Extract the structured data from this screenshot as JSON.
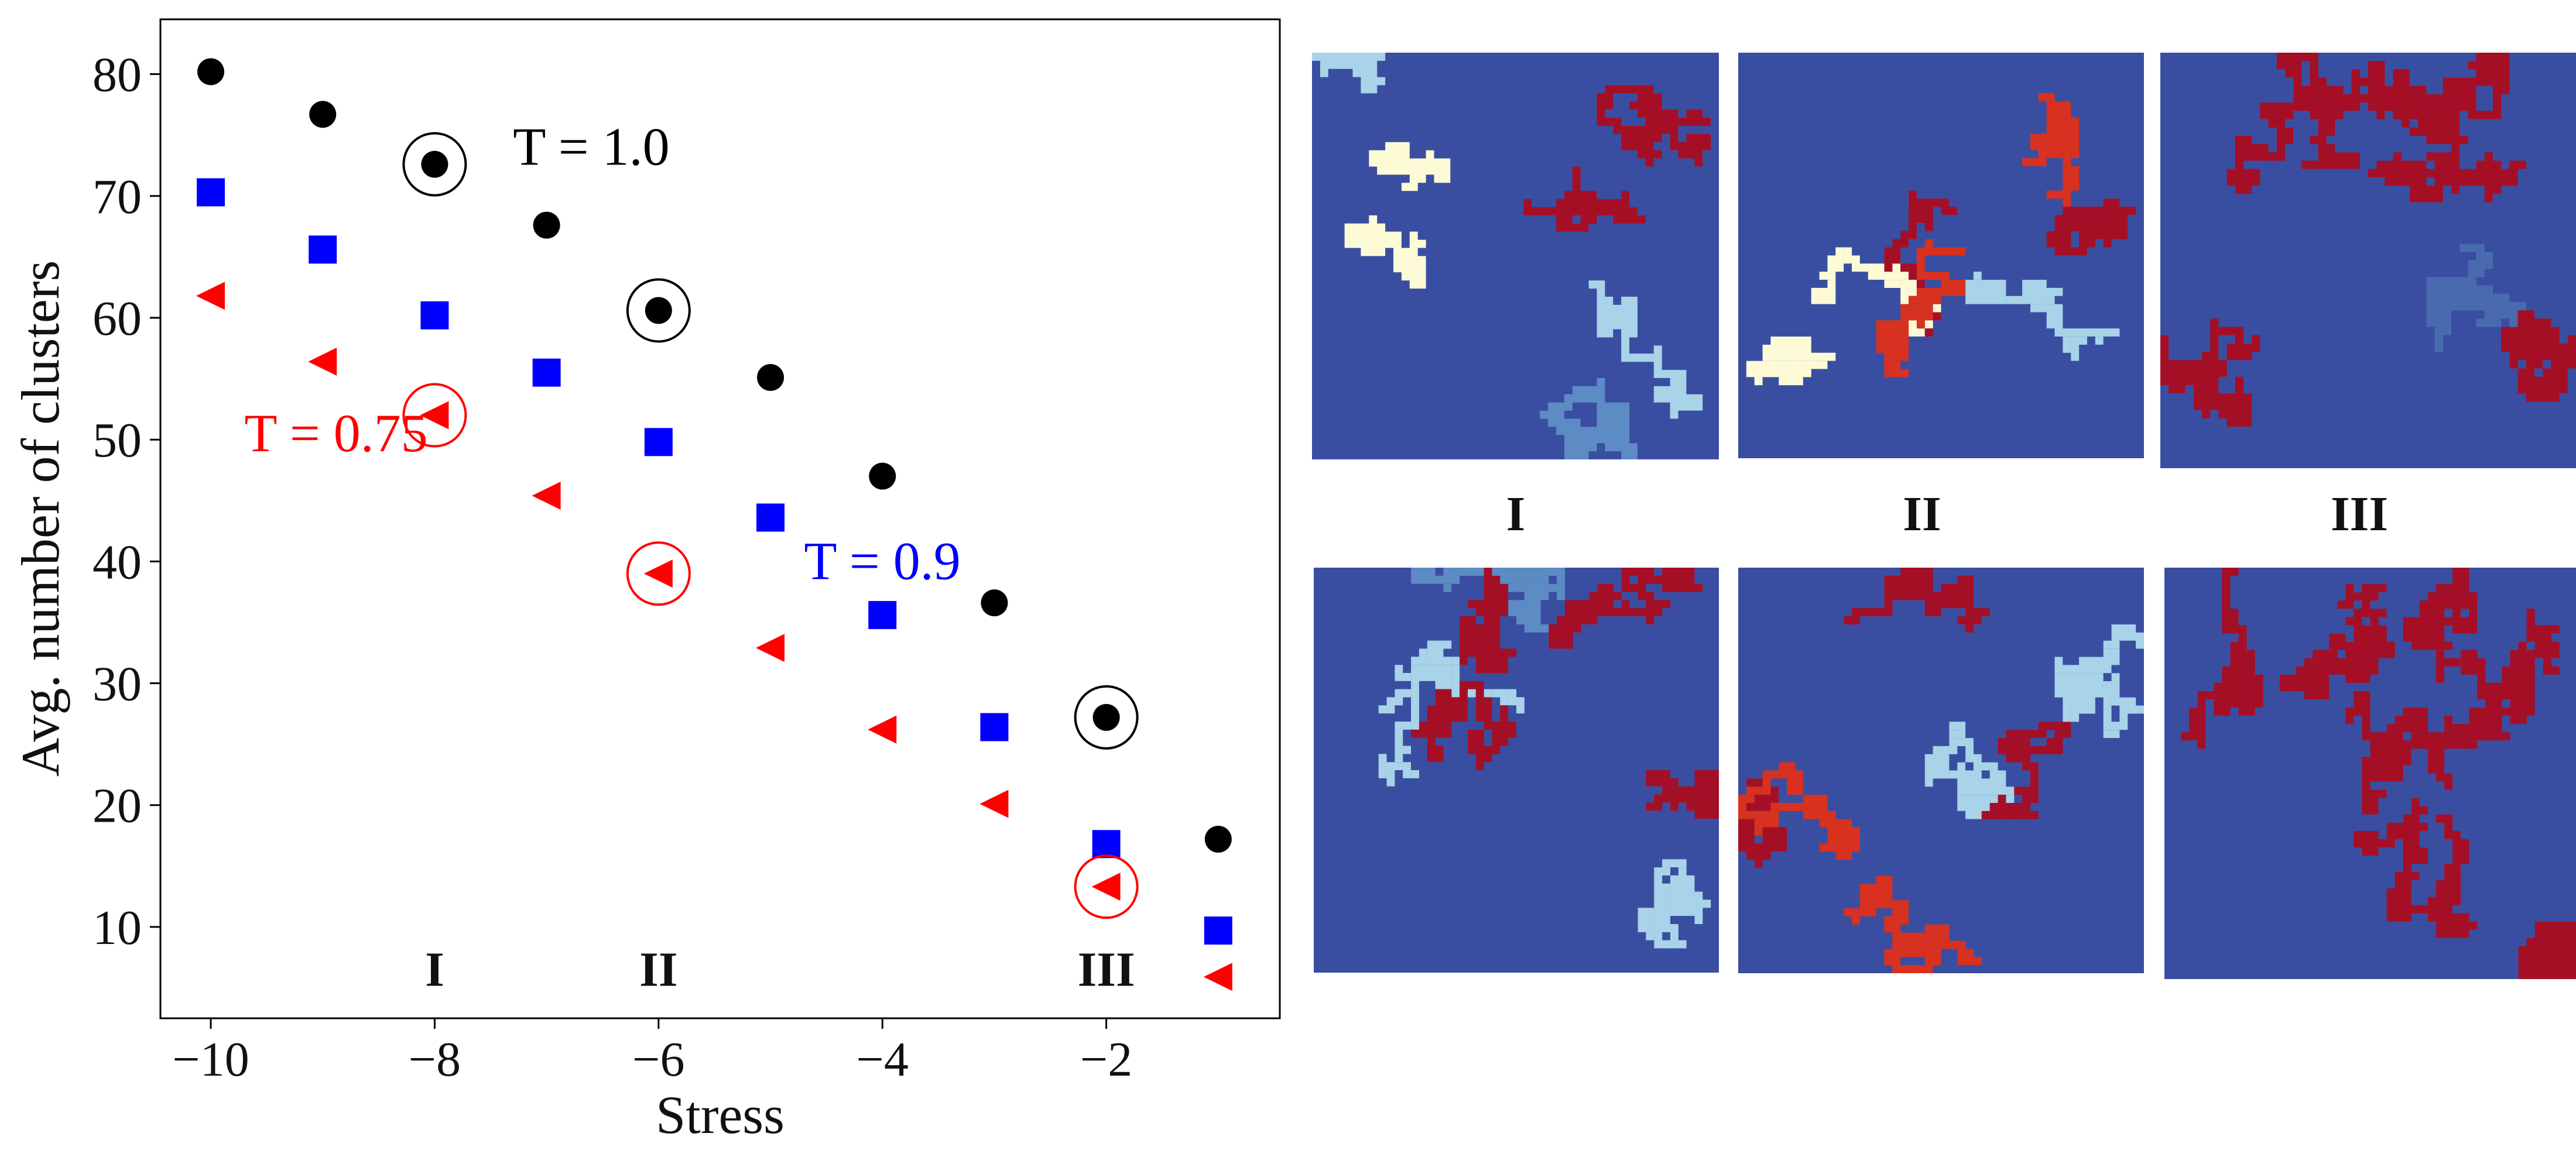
{
  "chart_data": {
    "type": "scatter",
    "xlabel": "Stress",
    "ylabel": "Avg. number of clusters",
    "xlim": [
      -10.45,
      -0.45
    ],
    "ylim": [
      2.5,
      84.5
    ],
    "xticks": [
      -10,
      -8,
      -6,
      -4,
      -2
    ],
    "yticks": [
      10,
      20,
      30,
      40,
      50,
      60,
      70,
      80
    ],
    "grid": false,
    "series": [
      {
        "name": "T = 1.0",
        "color": "#000000",
        "marker": "circle",
        "x": [
          -10,
          -9,
          -8,
          -7,
          -6,
          -5,
          -4,
          -3,
          -2,
          -1
        ],
        "y": [
          80.2,
          76.7,
          72.6,
          67.6,
          60.6,
          55.1,
          47.0,
          36.6,
          27.2,
          17.2
        ],
        "highlighted_x": [
          -8,
          -6,
          -2
        ]
      },
      {
        "name": "T = 0.9",
        "color": "#0000ff",
        "marker": "square",
        "x": [
          -10,
          -9,
          -8,
          -7,
          -6,
          -5,
          -4,
          -3,
          -2,
          -1
        ],
        "y": [
          70.3,
          65.6,
          60.2,
          55.5,
          49.8,
          43.6,
          35.6,
          26.4,
          16.8,
          9.7
        ],
        "highlighted_x": []
      },
      {
        "name": "T = 0.75",
        "color": "#ff0000",
        "marker": "triangle-left",
        "x": [
          -10,
          -9,
          -8,
          -7,
          -6,
          -5,
          -4,
          -3,
          -2,
          -1
        ],
        "y": [
          61.8,
          56.4,
          52.0,
          45.4,
          39.0,
          32.9,
          26.2,
          20.1,
          13.3,
          5.9
        ],
        "highlighted_x": [
          -8,
          -6,
          -2
        ]
      }
    ],
    "series_labels": [
      {
        "text": "T = 1.0",
        "color": "#000000",
        "x": -7.3,
        "y": 74.0
      },
      {
        "text": "T = 0.9",
        "color": "#0000ff",
        "x": -4.7,
        "y": 40.0
      },
      {
        "text": "T = 0.75",
        "color": "#ff0000",
        "x": -9.7,
        "y": 50.5
      }
    ],
    "regime_labels": [
      {
        "text": "I",
        "x": -8,
        "y": 6.6
      },
      {
        "text": "II",
        "x": -6,
        "y": 6.6
      },
      {
        "text": "III",
        "x": -2,
        "y": 6.6
      }
    ]
  },
  "snapshot_panels": {
    "column_labels": [
      "I",
      "II",
      "III"
    ],
    "colors": {
      "background": "#3a4ea1",
      "dark_red": "#a50f26",
      "red": "#d8311f",
      "light_blue": "#a8d3e8",
      "pale_yellow": "#fdfbd5",
      "mid_blue": "#5d8bc4",
      "steel_blue": "#4a6ab0"
    }
  }
}
